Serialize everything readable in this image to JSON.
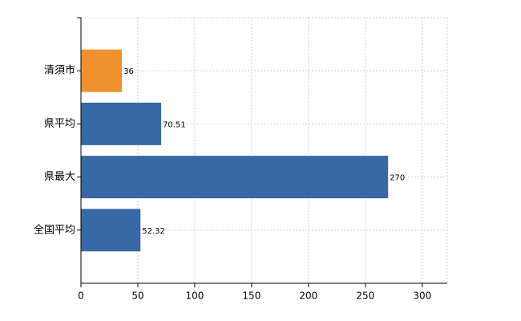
{
  "chart_data": {
    "type": "barh",
    "categories": [
      "清須市",
      "県平均",
      "県最大",
      "全国平均"
    ],
    "values": [
      36,
      70.51,
      270,
      52.32
    ],
    "colors": [
      "#f0912f",
      "#3869a6",
      "#3869a6",
      "#3869a6"
    ],
    "xlim": [
      0,
      322
    ],
    "xticks": [
      0,
      50,
      100,
      150,
      200,
      250,
      300
    ],
    "grid": true
  }
}
